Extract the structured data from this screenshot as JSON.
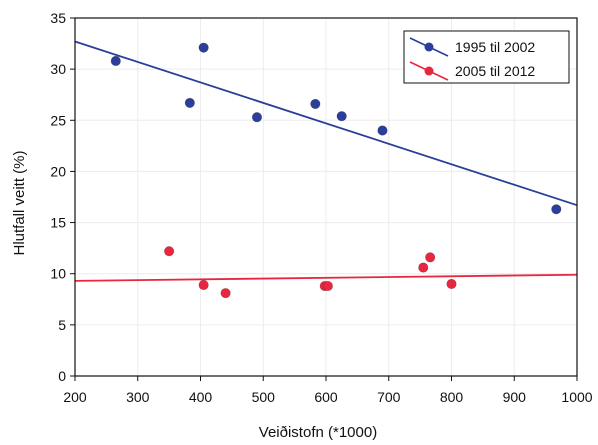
{
  "chart_data": {
    "type": "scatter",
    "title": "",
    "xlabel": "Veiðistofn (*1000)",
    "ylabel": "Hlutfall veitt (%)",
    "xlim": [
      200,
      1000
    ],
    "ylim": [
      0,
      35
    ],
    "xticks": [
      200,
      300,
      400,
      500,
      600,
      700,
      800,
      900,
      1000
    ],
    "yticks": [
      0,
      5,
      10,
      15,
      20,
      25,
      30,
      35
    ],
    "grid": true,
    "legend_position": "top-right",
    "series": [
      {
        "name": "1995 til 2002",
        "color": "#2b3f9a",
        "points": [
          [
            265,
            30.8
          ],
          [
            383,
            26.7
          ],
          [
            405,
            32.1
          ],
          [
            490,
            25.3
          ],
          [
            583,
            26.6
          ],
          [
            625,
            25.4
          ],
          [
            690,
            24.0
          ],
          [
            967,
            16.3
          ]
        ],
        "trendline": [
          [
            200,
            32.7
          ],
          [
            1000,
            16.7
          ]
        ]
      },
      {
        "name": "2005 til 2012",
        "color": "#e8263f",
        "points": [
          [
            350,
            12.2
          ],
          [
            405,
            8.9
          ],
          [
            440,
            8.1
          ],
          [
            598,
            8.8
          ],
          [
            603,
            8.8
          ],
          [
            755,
            10.6
          ],
          [
            766,
            11.6
          ],
          [
            800,
            9.0
          ]
        ],
        "trendline": [
          [
            200,
            9.3
          ],
          [
            1000,
            9.9
          ]
        ]
      }
    ]
  }
}
